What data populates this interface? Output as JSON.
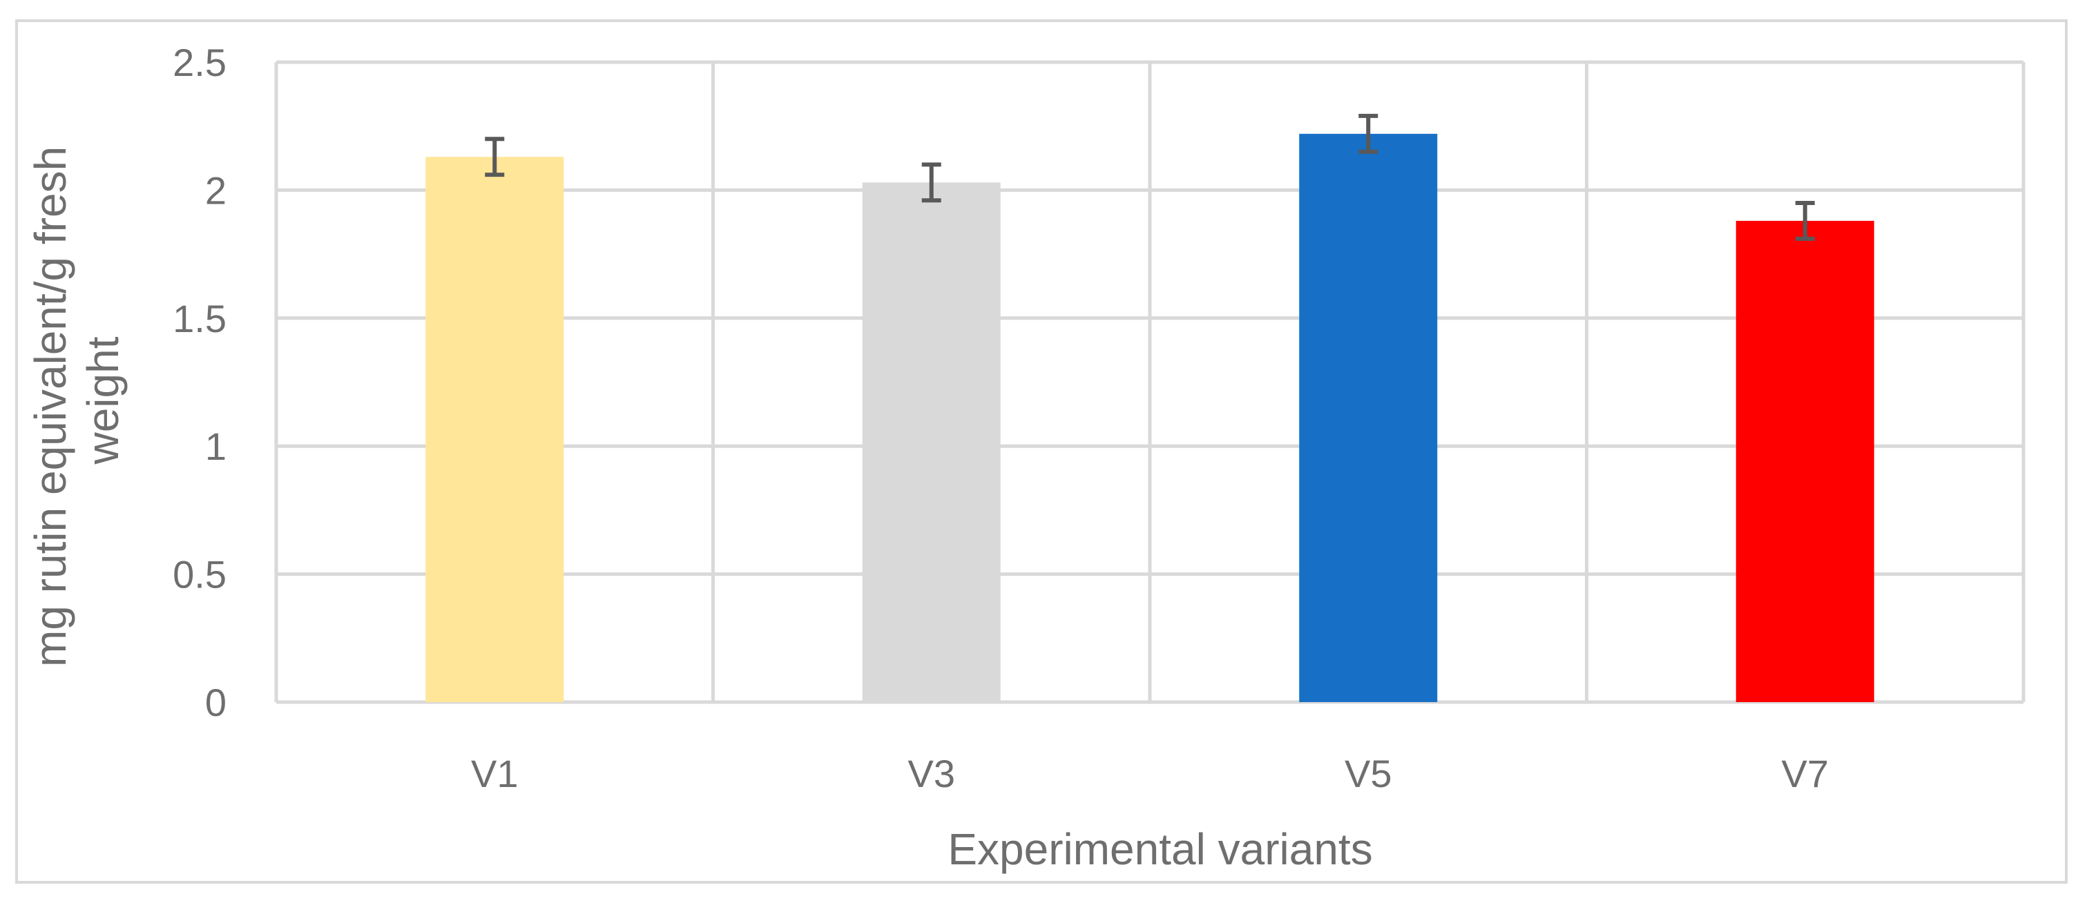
{
  "chart_data": {
    "type": "bar",
    "categories": [
      "V1",
      "V3",
      "V5",
      "V7"
    ],
    "values": [
      2.13,
      2.03,
      2.22,
      1.88
    ],
    "errors": [
      0.07,
      0.07,
      0.07,
      0.07
    ],
    "colors": [
      "#ffe699",
      "#d9d9d9",
      "#1870c6",
      "#ff0000"
    ],
    "xlabel": "Experimental variants",
    "ylabel_lines": [
      "mg rutin equivalent/g fresh",
      "weight"
    ],
    "ylim": [
      0,
      2.5
    ],
    "yticks": [
      0,
      0.5,
      1,
      1.5,
      2,
      2.5
    ],
    "ytick_labels": [
      "0",
      "0.5",
      "1",
      "1.5",
      "2",
      "2.5"
    ],
    "grid": true,
    "legend": "none",
    "style": {
      "grid_color": "#d9d9d9",
      "text_color": "#6e6e6e",
      "error_bar_color": "#595959"
    }
  }
}
